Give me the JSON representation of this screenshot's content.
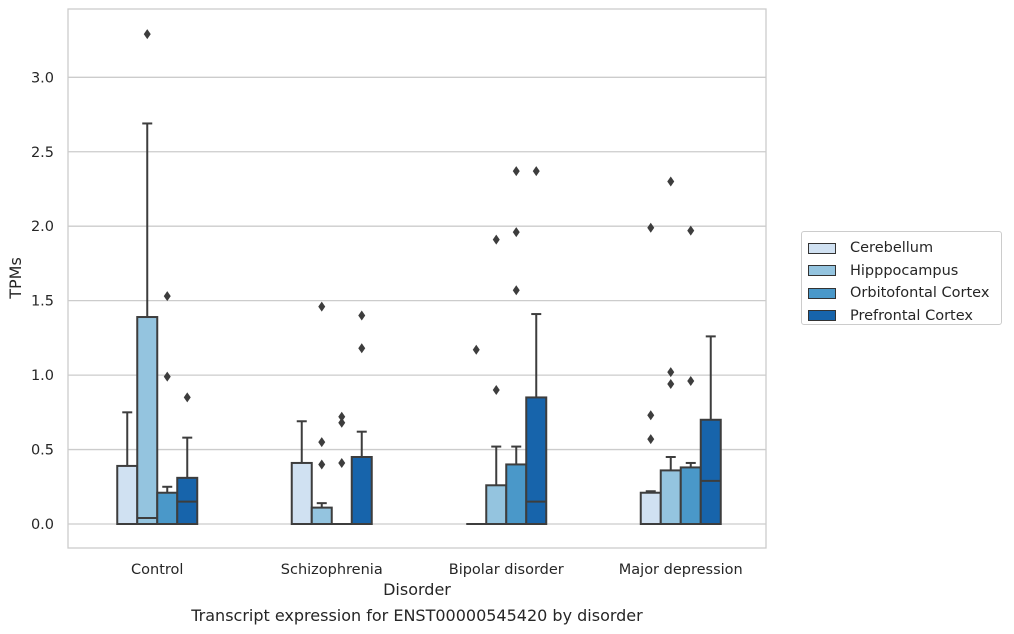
{
  "caption": "Transcript expression for ENST00000545420 by disorder",
  "chart_data": {
    "type": "box",
    "xlabel": "Disorder",
    "ylabel": "TPMs",
    "ylim": [
      -0.16,
      3.45
    ],
    "yticks": [
      "0.0",
      "0.5",
      "1.0",
      "1.5",
      "2.0",
      "2.5",
      "3.0"
    ],
    "categories": [
      "Control",
      "Schizophrenia",
      "Bipolar disorder",
      "Major depression"
    ],
    "grid": "horizontal",
    "legend_position": "right",
    "series": [
      {
        "name": "Cerebellum",
        "color": "#d0e1f2",
        "boxes": [
          {
            "q1": 0.0,
            "median": 0.0,
            "q3": 0.39,
            "whisker_low": 0.0,
            "whisker_high": 0.75,
            "outliers": []
          },
          {
            "q1": 0.0,
            "median": 0.0,
            "q3": 0.41,
            "whisker_low": 0.0,
            "whisker_high": 0.69,
            "outliers": []
          },
          {
            "q1": 0.0,
            "median": 0.0,
            "q3": 0.0,
            "whisker_low": 0.0,
            "whisker_high": 0.0,
            "outliers": [
              1.17
            ]
          },
          {
            "q1": 0.0,
            "median": 0.0,
            "q3": 0.21,
            "whisker_low": 0.0,
            "whisker_high": 0.22,
            "outliers": [
              0.57,
              0.73,
              1.99
            ]
          }
        ]
      },
      {
        "name": "Hipppocampus",
        "color": "#94c4df",
        "boxes": [
          {
            "q1": 0.0,
            "median": 0.04,
            "q3": 1.39,
            "whisker_low": 0.0,
            "whisker_high": 2.69,
            "outliers": [
              3.29
            ]
          },
          {
            "q1": 0.0,
            "median": 0.0,
            "q3": 0.11,
            "whisker_low": 0.0,
            "whisker_high": 0.14,
            "outliers": [
              0.4,
              0.55,
              1.46
            ]
          },
          {
            "q1": 0.0,
            "median": 0.0,
            "q3": 0.26,
            "whisker_low": 0.0,
            "whisker_high": 0.52,
            "outliers": [
              0.9,
              1.91
            ]
          },
          {
            "q1": 0.0,
            "median": 0.0,
            "q3": 0.36,
            "whisker_low": 0.0,
            "whisker_high": 0.45,
            "outliers": [
              0.94,
              1.02,
              2.3
            ]
          }
        ]
      },
      {
        "name": "Orbitofontal Cortex",
        "color": "#4a98c9",
        "boxes": [
          {
            "q1": 0.0,
            "median": 0.0,
            "q3": 0.21,
            "whisker_low": 0.0,
            "whisker_high": 0.25,
            "outliers": [
              0.99,
              1.53
            ]
          },
          {
            "q1": 0.0,
            "median": 0.0,
            "q3": 0.0,
            "whisker_low": 0.0,
            "whisker_high": 0.0,
            "outliers": [
              0.41,
              0.68,
              0.72
            ]
          },
          {
            "q1": 0.0,
            "median": 0.0,
            "q3": 0.4,
            "whisker_low": 0.0,
            "whisker_high": 0.52,
            "outliers": [
              1.57,
              1.96,
              2.37
            ]
          },
          {
            "q1": 0.0,
            "median": 0.0,
            "q3": 0.38,
            "whisker_low": 0.0,
            "whisker_high": 0.41,
            "outliers": [
              0.96,
              1.97
            ]
          }
        ]
      },
      {
        "name": "Prefrontal Cortex",
        "color": "#1764ab",
        "boxes": [
          {
            "q1": 0.0,
            "median": 0.15,
            "q3": 0.31,
            "whisker_low": 0.0,
            "whisker_high": 0.58,
            "outliers": [
              0.85
            ]
          },
          {
            "q1": 0.0,
            "median": 0.0,
            "q3": 0.45,
            "whisker_low": 0.0,
            "whisker_high": 0.62,
            "outliers": [
              1.18,
              1.4
            ]
          },
          {
            "q1": 0.0,
            "median": 0.15,
            "q3": 0.85,
            "whisker_low": 0.0,
            "whisker_high": 1.41,
            "outliers": [
              2.37
            ]
          },
          {
            "q1": 0.0,
            "median": 0.29,
            "q3": 0.7,
            "whisker_low": 0.0,
            "whisker_high": 1.26,
            "outliers": []
          }
        ]
      }
    ]
  }
}
